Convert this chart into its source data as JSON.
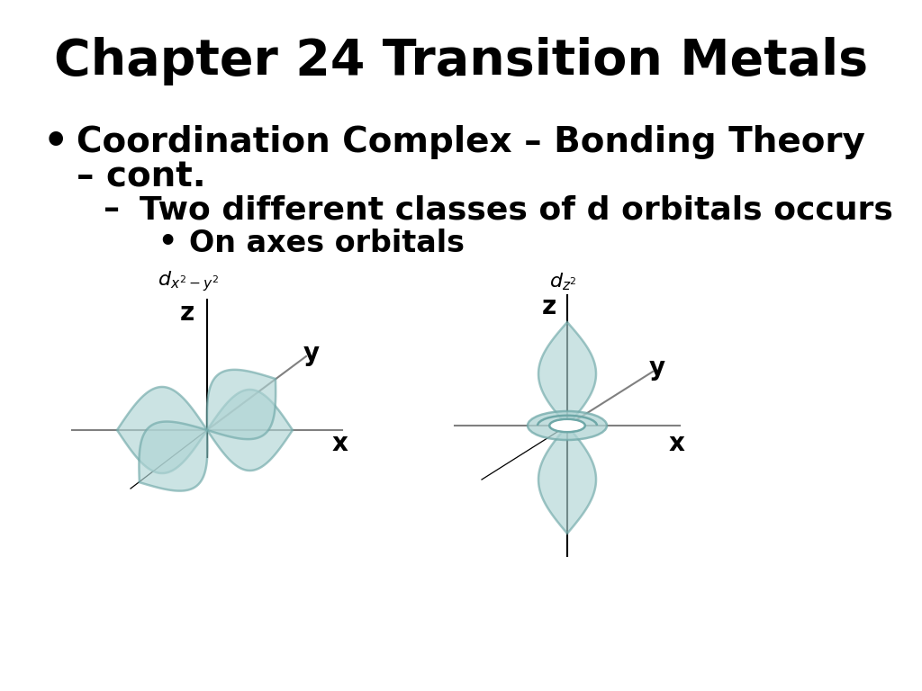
{
  "title": "Chapter 24 Transition Metals",
  "title_fontsize": 40,
  "background_color": "#ffffff",
  "text_color": "#000000",
  "bullet1_line1": "Coordination Complex – Bonding Theory",
  "bullet1_line2": "– cont.",
  "sub_bullet1": "Two different classes of d orbitals occurs",
  "sub_bullet2": "On axes orbitals",
  "bullet_fontsize": 28,
  "sub1_fontsize": 26,
  "sub2_fontsize": 24,
  "orbital_fill": "#afd4d4",
  "orbital_edge": "#6fa8a8",
  "orbital_alpha": 0.65,
  "orbital_lw": 1.8,
  "label_left_main": "d",
  "label_left_sub": "x^2 – y^2",
  "label_right_main": "d",
  "label_right_sub": "z^2",
  "axis_label_fontsize": 20,
  "orbital_label_fontsize": 16
}
